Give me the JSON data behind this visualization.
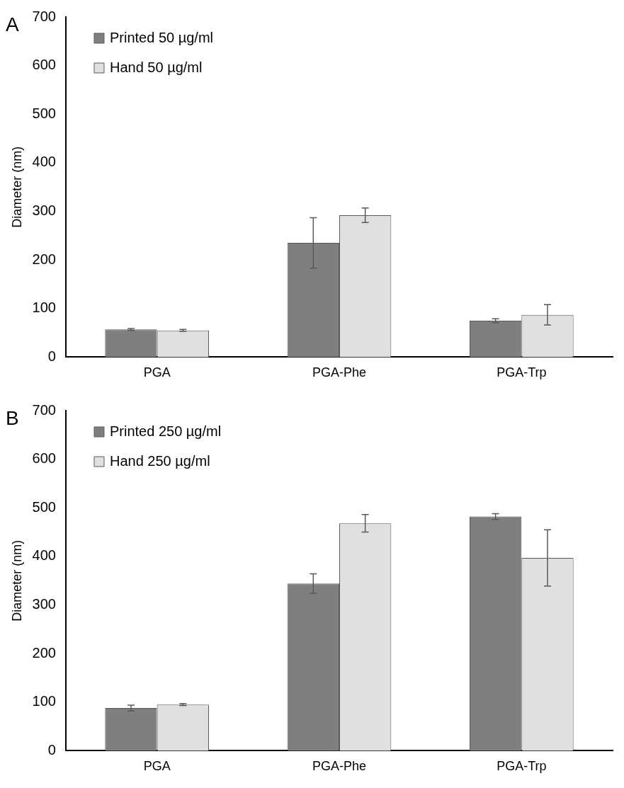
{
  "chart_data": [
    {
      "type": "bar",
      "title": "A",
      "ylabel": "Diameter (nm)",
      "categories": [
        "PGA",
        "PGA-Phe",
        "PGA-Trp"
      ],
      "series": [
        {
          "name": "Printed 50 µg/ml",
          "color": "#7f7f7f",
          "values": [
            57,
            235,
            75
          ],
          "errors": [
            2,
            52,
            4
          ]
        },
        {
          "name": "Hand 50 µg/ml",
          "color": "#e0e0e0",
          "values": [
            55,
            292,
            87
          ],
          "errors": [
            2,
            15,
            21
          ]
        }
      ],
      "ylim": [
        0,
        700
      ],
      "yticks": [
        0,
        100,
        200,
        300,
        400,
        500,
        600,
        700
      ],
      "grid": false,
      "legend": "top left"
    },
    {
      "type": "bar",
      "title": "B",
      "ylabel": "Diameter (nm)",
      "categories": [
        "PGA",
        "PGA-Phe",
        "PGA-Trp"
      ],
      "series": [
        {
          "name": "Printed 250 µg/ml",
          "color": "#7f7f7f",
          "values": [
            88,
            344,
            482
          ],
          "errors": [
            6,
            20,
            6
          ]
        },
        {
          "name": "Hand 250 µg/ml",
          "color": "#e0e0e0",
          "values": [
            95,
            468,
            397
          ],
          "errors": [
            2,
            18,
            58
          ]
        }
      ],
      "ylim": [
        0,
        700
      ],
      "yticks": [
        0,
        100,
        200,
        300,
        400,
        500,
        600,
        700
      ],
      "grid": false,
      "legend": "top left"
    }
  ]
}
